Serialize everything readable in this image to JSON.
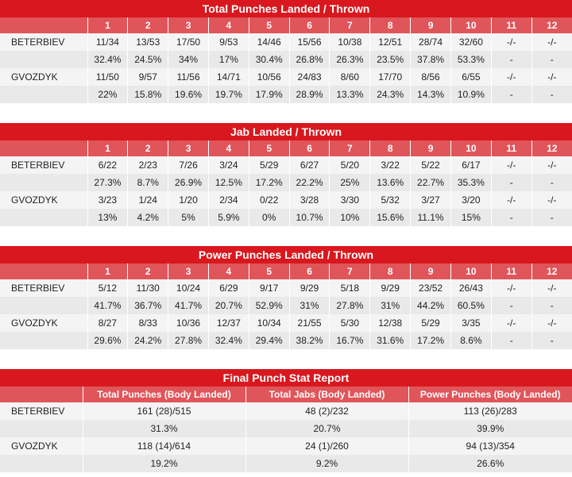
{
  "rounds": [
    "1",
    "2",
    "3",
    "4",
    "5",
    "6",
    "7",
    "8",
    "9",
    "10",
    "11",
    "12"
  ],
  "tables": [
    {
      "title": "Total Punches Landed / Thrown",
      "fighters": [
        {
          "name": "BETERBIEV",
          "landed": [
            "11/34",
            "13/53",
            "17/50",
            "9/53",
            "14/46",
            "15/56",
            "10/38",
            "12/51",
            "28/74",
            "32/60",
            "-/-",
            "-/-"
          ],
          "pct": [
            "32.4%",
            "24.5%",
            "34%",
            "17%",
            "30.4%",
            "26.8%",
            "26.3%",
            "23.5%",
            "37.8%",
            "53.3%",
            "-",
            "-"
          ]
        },
        {
          "name": "GVOZDYK",
          "landed": [
            "11/50",
            "9/57",
            "11/56",
            "14/71",
            "10/56",
            "24/83",
            "8/60",
            "17/70",
            "8/56",
            "6/55",
            "-/-",
            "-/-"
          ],
          "pct": [
            "22%",
            "15.8%",
            "19.6%",
            "19.7%",
            "17.9%",
            "28.9%",
            "13.3%",
            "24.3%",
            "14.3%",
            "10.9%",
            "-",
            "-"
          ]
        }
      ]
    },
    {
      "title": "Jab Landed / Thrown",
      "fighters": [
        {
          "name": "BETERBIEV",
          "landed": [
            "6/22",
            "2/23",
            "7/26",
            "3/24",
            "5/29",
            "6/27",
            "5/20",
            "3/22",
            "5/22",
            "6/17",
            "-/-",
            "-/-"
          ],
          "pct": [
            "27.3%",
            "8.7%",
            "26.9%",
            "12.5%",
            "17.2%",
            "22.2%",
            "25%",
            "13.6%",
            "22.7%",
            "35.3%",
            "-",
            "-"
          ]
        },
        {
          "name": "GVOZDYK",
          "landed": [
            "3/23",
            "1/24",
            "1/20",
            "2/34",
            "0/22",
            "3/28",
            "3/30",
            "5/32",
            "3/27",
            "3/20",
            "-/-",
            "-/-"
          ],
          "pct": [
            "13%",
            "4.2%",
            "5%",
            "5.9%",
            "0%",
            "10.7%",
            "10%",
            "15.6%",
            "11.1%",
            "15%",
            "-",
            "-"
          ]
        }
      ]
    },
    {
      "title": "Power Punches Landed / Thrown",
      "fighters": [
        {
          "name": "BETERBIEV",
          "landed": [
            "5/12",
            "11/30",
            "10/24",
            "6/29",
            "9/17",
            "9/29",
            "5/18",
            "9/29",
            "23/52",
            "26/43",
            "-/-",
            "-/-"
          ],
          "pct": [
            "41.7%",
            "36.7%",
            "41.7%",
            "20.7%",
            "52.9%",
            "31%",
            "27.8%",
            "31%",
            "44.2%",
            "60.5%",
            "-",
            "-"
          ]
        },
        {
          "name": "GVOZDYK",
          "landed": [
            "8/27",
            "8/33",
            "10/36",
            "12/37",
            "10/34",
            "21/55",
            "5/30",
            "12/38",
            "5/29",
            "3/35",
            "-/-",
            "-/-"
          ],
          "pct": [
            "29.6%",
            "24.2%",
            "27.8%",
            "32.4%",
            "29.4%",
            "38.2%",
            "16.7%",
            "31.6%",
            "17.2%",
            "8.6%",
            "-",
            "-"
          ]
        }
      ]
    }
  ],
  "final": {
    "title": "Final Punch Stat Report",
    "headers": [
      "Total Punches (Body Landed)",
      "Total Jabs (Body Landed)",
      "Power Punches (Body Landed)"
    ],
    "fighters": [
      {
        "name": "BETERBIEV",
        "values": [
          "161 (28)/515",
          "48 (2)/232",
          "113 (26)/283"
        ],
        "pct": [
          "31.3%",
          "20.7%",
          "39.9%"
        ]
      },
      {
        "name": "GVOZDYK",
        "values": [
          "118 (14)/614",
          "24 (1)/260",
          "94 (13)/354"
        ],
        "pct": [
          "19.2%",
          "9.2%",
          "26.6%"
        ]
      }
    ]
  }
}
